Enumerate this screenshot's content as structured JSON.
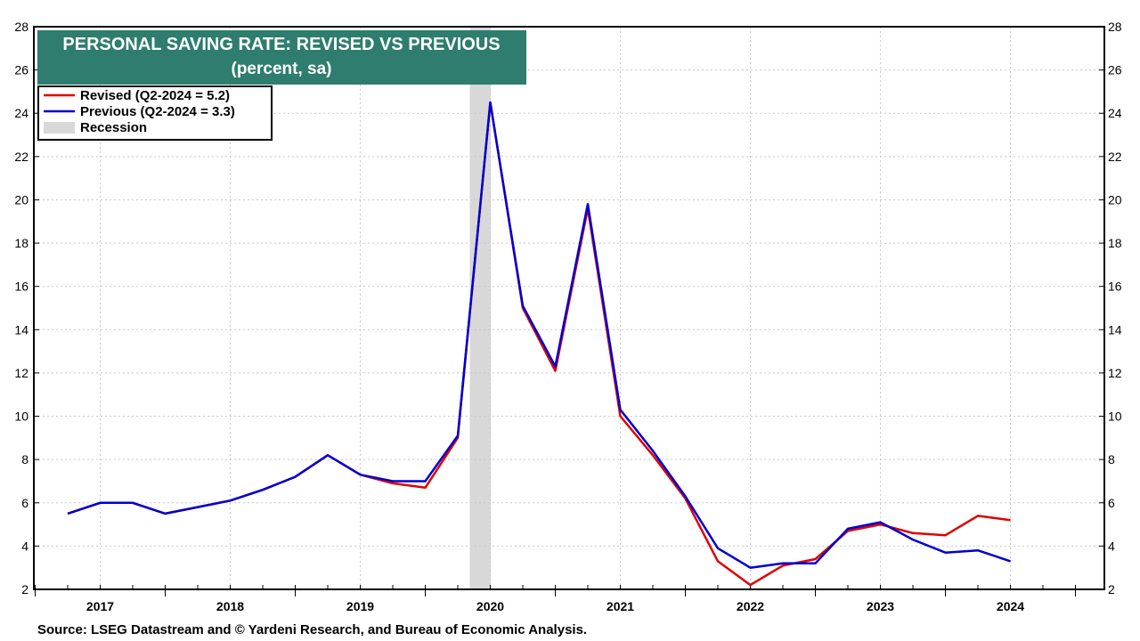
{
  "chart_data": {
    "type": "line",
    "title": "PERSONAL SAVING RATE: REVISED VS PREVIOUS",
    "subtitle": "(percent, sa)",
    "ylim": [
      2,
      28
    ],
    "yticks": [
      2,
      4,
      6,
      8,
      10,
      12,
      14,
      16,
      18,
      20,
      22,
      24,
      26,
      28
    ],
    "year_labels": [
      "2017",
      "2018",
      "2019",
      "2020",
      "2021",
      "2022",
      "2023",
      "2024"
    ],
    "x_quarters": [
      "2016-Q4",
      "2017-Q1",
      "2017-Q2",
      "2017-Q3",
      "2017-Q4",
      "2018-Q1",
      "2018-Q2",
      "2018-Q3",
      "2018-Q4",
      "2019-Q1",
      "2019-Q2",
      "2019-Q3",
      "2019-Q4",
      "2020-Q1",
      "2020-Q2",
      "2020-Q3",
      "2020-Q4",
      "2021-Q1",
      "2021-Q2",
      "2021-Q3",
      "2021-Q4",
      "2022-Q1",
      "2022-Q2",
      "2022-Q3",
      "2022-Q4",
      "2023-Q1",
      "2023-Q2",
      "2023-Q3",
      "2023-Q4",
      "2024-Q1",
      "2024-Q2"
    ],
    "series": [
      {
        "name": "Revised (Q2-2024 = 5.2)",
        "color": "#e00000",
        "values": [
          5.5,
          6.0,
          6.0,
          5.5,
          5.8,
          6.1,
          6.6,
          7.2,
          8.2,
          7.3,
          6.9,
          6.7,
          9.0,
          24.5,
          15.0,
          12.1,
          19.6,
          10.0,
          8.2,
          6.2,
          3.3,
          2.2,
          3.1,
          3.4,
          4.7,
          5.0,
          4.6,
          4.5,
          5.4,
          5.2,
          null
        ]
      },
      {
        "name": "Previous (Q2-2024 = 3.3)",
        "color": "#0000d0",
        "values": [
          5.5,
          6.0,
          6.0,
          5.5,
          5.8,
          6.1,
          6.6,
          7.2,
          8.2,
          7.3,
          7.0,
          7.0,
          9.1,
          24.5,
          15.1,
          12.3,
          19.8,
          10.3,
          8.4,
          6.3,
          3.9,
          3.0,
          3.2,
          3.2,
          4.8,
          5.1,
          4.3,
          3.7,
          3.8,
          3.3,
          null
        ]
      }
    ],
    "recession": {
      "label": "Recession",
      "start": "2020-Q1",
      "end": "2020-Q2",
      "color": "#d8d8d8"
    },
    "legend_position": "top-left",
    "grid": true,
    "title_box_color": "#2e7d6e"
  },
  "source": "Source: LSEG Datastream and © Yardeni Research, and Bureau of Economic Analysis."
}
